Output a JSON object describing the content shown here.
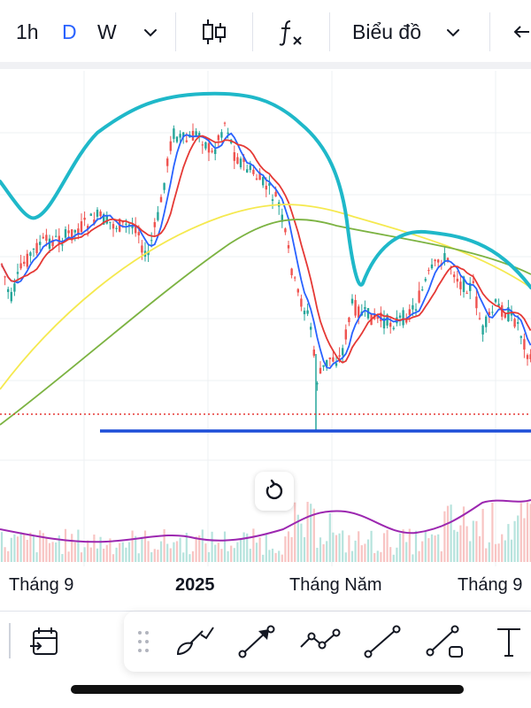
{
  "toolbar": {
    "intervals": [
      "1h",
      "D",
      "W"
    ],
    "active_interval": "D",
    "chart_type_label": "Biểu đồ"
  },
  "xaxis": {
    "labels": [
      "Tháng 9",
      "2025",
      "Tháng Năm",
      "Tháng 9"
    ]
  },
  "colors": {
    "accent": "#2962ff",
    "up": "#26a69a",
    "down": "#ef5350",
    "ma_blue": "#2962ff",
    "ma_red": "#e53935",
    "ma_yellow": "#f5e94f",
    "ma_green": "#7cb342",
    "overlay_cyan": "#1fb8c9",
    "oscillator": "#9c27b0",
    "support_line": "#1e4ed8",
    "price_line": "#e53935"
  },
  "icons": {
    "toolbar": [
      "chevron-down-icon",
      "candlestick-icon",
      "function-icon",
      "chevron-down-icon",
      "arrow-left-icon"
    ],
    "bottom": [
      "calendar-icon",
      "drag-handle-icon",
      "brush-icon",
      "arrow-tool-icon",
      "path-tool-icon",
      "trend-line-icon",
      "ray-tool-icon",
      "text-tool-icon"
    ]
  }
}
